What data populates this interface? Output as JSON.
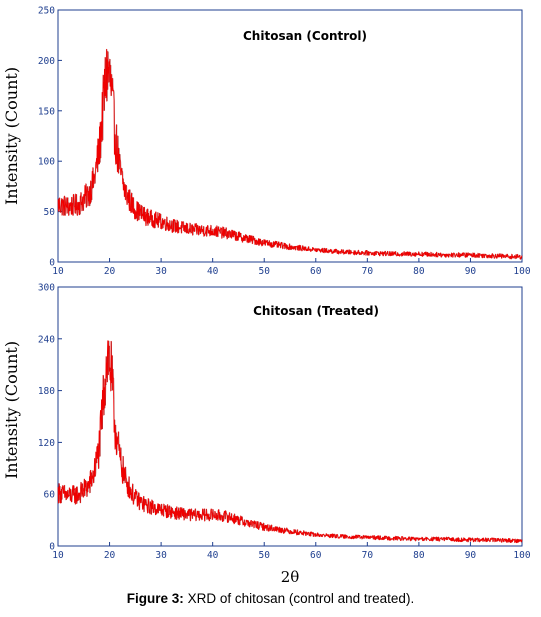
{
  "caption": {
    "label": "Figure 3:",
    "text": "XRD of chitosan (control and treated)."
  },
  "colors": {
    "series": "#ee0000",
    "series_dark": "#7a0000",
    "frame": "#1f3f8f",
    "tick_text": "#1f3f8f"
  },
  "chart_data": [
    {
      "type": "line",
      "title": "Chitosan (Control)",
      "xlabel": "",
      "ylabel": "Intensity (Count)",
      "xlim": [
        10,
        100
      ],
      "ylim": [
        0,
        250
      ],
      "xticks": [
        "10",
        "20",
        "30",
        "40",
        "50",
        "60",
        "70",
        "80",
        "90",
        "100"
      ],
      "yticks": [
        "0",
        "50",
        "100",
        "150",
        "200",
        "250"
      ],
      "grid": false,
      "series": [
        {
          "x": [
            10,
            12,
            14,
            16,
            17,
            18,
            18.5,
            19,
            19.5,
            20,
            20.5,
            21,
            22,
            23,
            24,
            25,
            27,
            30,
            33,
            36,
            40,
            43,
            46,
            50,
            55,
            60,
            65,
            70,
            75,
            80,
            85,
            90,
            95,
            100
          ],
          "y": [
            57,
            55,
            57,
            68,
            82,
            112,
            140,
            170,
            190,
            185,
            160,
            128,
            90,
            70,
            60,
            52,
            45,
            40,
            35,
            32,
            31,
            28,
            24,
            19,
            15,
            12,
            10,
            9,
            8,
            8,
            7,
            7,
            6,
            5
          ]
        }
      ]
    },
    {
      "type": "line",
      "title": "Chitosan (Treated)",
      "xlabel": "2θ",
      "ylabel": "Intensity (Count)",
      "xlim": [
        10,
        100
      ],
      "ylim": [
        0,
        300
      ],
      "xticks": [
        "10",
        "20",
        "30",
        "40",
        "50",
        "60",
        "70",
        "80",
        "90",
        "100"
      ],
      "yticks": [
        "0",
        "60",
        "120",
        "180",
        "240",
        "300"
      ],
      "grid": false,
      "series": [
        {
          "x": [
            10,
            12,
            14,
            16,
            17,
            18,
            18.5,
            19,
            19.5,
            20,
            20.5,
            21,
            22,
            23,
            24,
            25,
            27,
            30,
            33,
            36,
            40,
            43,
            46,
            50,
            55,
            60,
            65,
            70,
            75,
            80,
            85,
            90,
            95,
            100
          ],
          "y": [
            62,
            58,
            60,
            70,
            85,
            115,
            150,
            190,
            220,
            215,
            185,
            140,
            100,
            78,
            65,
            55,
            47,
            42,
            38,
            36,
            36,
            34,
            28,
            22,
            17,
            13,
            11,
            10,
            9,
            8,
            8,
            7,
            7,
            6
          ]
        }
      ]
    }
  ]
}
